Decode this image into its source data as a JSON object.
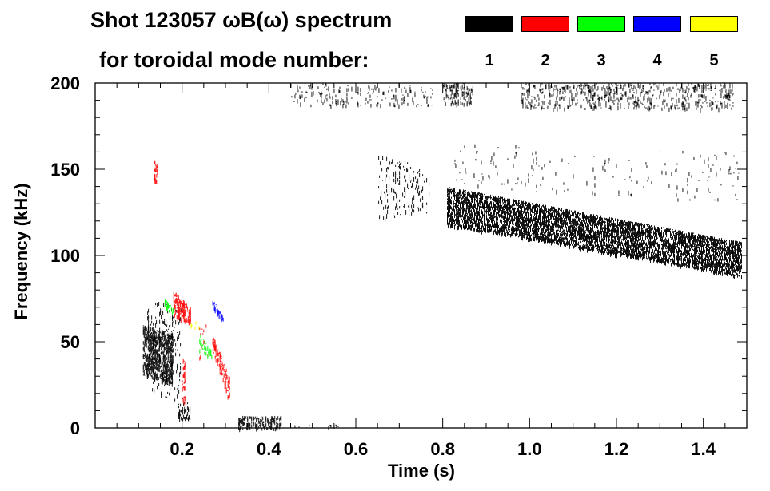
{
  "chart_data": {
    "type": "heatmap",
    "title_line1": "Shot 123057 ωB(ω) spectrum",
    "title_line2": "for toroidal mode number:",
    "xlabel": "Time (s)",
    "ylabel": "Frequency (kHz)",
    "xlim": [
      0.0,
      1.5
    ],
    "ylim": [
      0,
      200
    ],
    "x_ticks": [
      0.2,
      0.4,
      0.6,
      0.8,
      1.0,
      1.2,
      1.4
    ],
    "x_tick_labels": [
      "0.2",
      "0.4",
      "0.6",
      "0.8",
      "1.0",
      "1.2",
      "1.4"
    ],
    "y_ticks": [
      0,
      50,
      100,
      150,
      200
    ],
    "y_tick_labels": [
      "0",
      "50",
      "100",
      "150",
      "200"
    ],
    "legend": [
      {
        "mode": "1",
        "color": "#000000"
      },
      {
        "mode": "2",
        "color": "#ff0000"
      },
      {
        "mode": "3",
        "color": "#00ff00"
      },
      {
        "mode": "4",
        "color": "#0000ff"
      },
      {
        "mode": "5",
        "color": "#ffff00"
      }
    ],
    "features": [
      {
        "name": "n1 broadband 0.8-1.5s",
        "mode": "1",
        "t": [
          0.81,
          1.49
        ],
        "f_low": [
          118,
          88
        ],
        "f_high": [
          140,
          108
        ],
        "density": 0.55
      },
      {
        "name": "n1 upper band 0.65-0.77s",
        "mode": "1",
        "t": [
          0.65,
          0.77
        ],
        "f_low": [
          120,
          125
        ],
        "f_high": [
          160,
          150
        ],
        "density": 0.06
      },
      {
        "name": "n1 sparse 0.82-1.49s",
        "mode": "1",
        "t": [
          0.82,
          1.49
        ],
        "f_low": [
          140,
          130
        ],
        "f_high": [
          165,
          160
        ],
        "density": 0.015
      },
      {
        "name": "n1 top 0.45-0.78s",
        "mode": "1",
        "t": [
          0.45,
          0.78
        ],
        "f_low": [
          187,
          187
        ],
        "f_high": [
          200,
          200
        ],
        "density": 0.06
      },
      {
        "name": "n1 top 0.80-0.87s",
        "mode": "1",
        "t": [
          0.8,
          0.87
        ],
        "f_low": [
          188,
          188
        ],
        "f_high": [
          200,
          200
        ],
        "density": 0.2
      },
      {
        "name": "n1 top 0.98-1.47s",
        "mode": "1",
        "t": [
          0.98,
          1.47
        ],
        "f_low": [
          185,
          185
        ],
        "f_high": [
          200,
          200
        ],
        "density": 0.14
      },
      {
        "name": "n1 early burst",
        "mode": "1",
        "t": [
          0.11,
          0.18
        ],
        "f_low": [
          30,
          25
        ],
        "f_high": [
          60,
          55
        ],
        "density": 0.5
      },
      {
        "name": "n1 early streaks",
        "mode": "1",
        "t": [
          0.12,
          0.2
        ],
        "f_low": [
          20,
          15
        ],
        "f_high": [
          75,
          70
        ],
        "density": 0.07
      },
      {
        "name": "n1 0.2s low",
        "mode": "1",
        "t": [
          0.19,
          0.22
        ],
        "f_low": [
          5,
          5
        ],
        "f_high": [
          15,
          15
        ],
        "density": 0.35
      },
      {
        "name": "n1 0.38s low",
        "mode": "1",
        "t": [
          0.33,
          0.43
        ],
        "f_low": [
          0,
          0
        ],
        "f_high": [
          7,
          7
        ],
        "density": 0.35
      },
      {
        "name": "n1 0.5s low",
        "mode": "1",
        "t": [
          0.45,
          0.58
        ],
        "f_low": [
          0,
          0
        ],
        "f_high": [
          2,
          2
        ],
        "density": 0.12
      },
      {
        "name": "n2 0.2s chirp",
        "mode": "2",
        "t": [
          0.18,
          0.22
        ],
        "f_low": [
          65,
          60
        ],
        "f_high": [
          80,
          70
        ],
        "density": 0.45
      },
      {
        "name": "n2 0.2s lower",
        "mode": "2",
        "t": [
          0.2,
          0.21
        ],
        "f_low": [
          15,
          15
        ],
        "f_high": [
          40,
          40
        ],
        "density": 0.22
      },
      {
        "name": "n2 0.29s",
        "mode": "2",
        "t": [
          0.27,
          0.31
        ],
        "f_low": [
          45,
          15
        ],
        "f_high": [
          55,
          30
        ],
        "density": 0.35
      },
      {
        "name": "n2 0.14s 150kHz",
        "mode": "2",
        "t": [
          0.135,
          0.145
        ],
        "f_low": [
          143,
          143
        ],
        "f_high": [
          155,
          155
        ],
        "density": 0.5
      },
      {
        "name": "n2 0.25s",
        "mode": "2",
        "t": [
          0.24,
          0.26
        ],
        "f_low": [
          40,
          40
        ],
        "f_high": [
          60,
          60
        ],
        "density": 0.05
      },
      {
        "name": "n3 0.17s",
        "mode": "3",
        "t": [
          0.16,
          0.18
        ],
        "f_low": [
          70,
          65
        ],
        "f_high": [
          75,
          70
        ],
        "density": 0.3
      },
      {
        "name": "n3 0.25s",
        "mode": "3",
        "t": [
          0.24,
          0.27
        ],
        "f_low": [
          45,
          40
        ],
        "f_high": [
          55,
          45
        ],
        "density": 0.3
      },
      {
        "name": "n4 0.28s chirp",
        "mode": "4",
        "t": [
          0.27,
          0.295
        ],
        "f_low": [
          70,
          60
        ],
        "f_high": [
          75,
          65
        ],
        "density": 0.5
      },
      {
        "name": "n5 0.23s",
        "mode": "5",
        "t": [
          0.22,
          0.24
        ],
        "f_low": [
          58,
          58
        ],
        "f_high": [
          62,
          62
        ],
        "density": 0.3
      }
    ]
  }
}
